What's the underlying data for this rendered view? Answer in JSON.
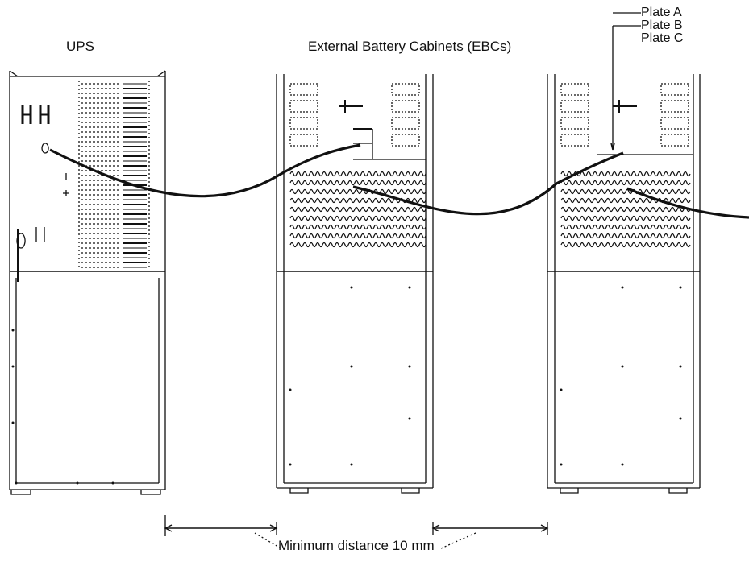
{
  "labels": {
    "ups": "UPS",
    "ebc": "External Battery Cabinets (EBCs)",
    "plate_a": "Plate A",
    "plate_b": "Plate B",
    "plate_c": "Plate C",
    "min_distance": "Minimum distance 10 mm"
  }
}
